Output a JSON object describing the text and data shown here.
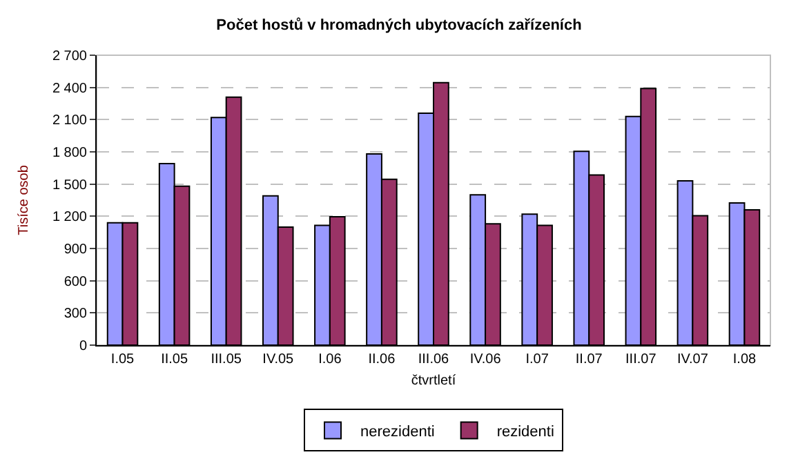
{
  "chart_data": {
    "type": "bar",
    "title": "Počet hostů v hromadných ubytovacích zařízeních",
    "xlabel": "čtvrtletí",
    "ylabel": "Tisíce osob",
    "categories": [
      "I.05",
      "II.05",
      "III.05",
      "IV.05",
      "I.06",
      "II.06",
      "III.06",
      "IV.06",
      "I.07",
      "II.07",
      "III.07",
      "IV.07",
      "I.08"
    ],
    "series": [
      {
        "name": "nerezidenti",
        "color": "#9999ff",
        "values": [
          1140,
          1690,
          2120,
          1390,
          1115,
          1780,
          2160,
          1400,
          1220,
          1805,
          2130,
          1530,
          1325
        ]
      },
      {
        "name": "rezidenti",
        "color": "#993366",
        "values": [
          1140,
          1480,
          2310,
          1100,
          1195,
          1545,
          2445,
          1130,
          1115,
          1585,
          2390,
          1205,
          1260
        ]
      }
    ],
    "ylim": [
      0,
      2700
    ],
    "yticks": [
      0,
      300,
      600,
      900,
      {
        "value": 1200,
        "label": "1 200"
      },
      {
        "value": 1500,
        "label": "1 500"
      },
      {
        "value": 1800,
        "label": "1 800"
      },
      {
        "value": 2100,
        "label": "2 100"
      },
      {
        "value": 2400,
        "label": "2 400"
      },
      {
        "value": 2700,
        "label": "2 700"
      }
    ],
    "grid": "y",
    "legend": "bottom"
  }
}
